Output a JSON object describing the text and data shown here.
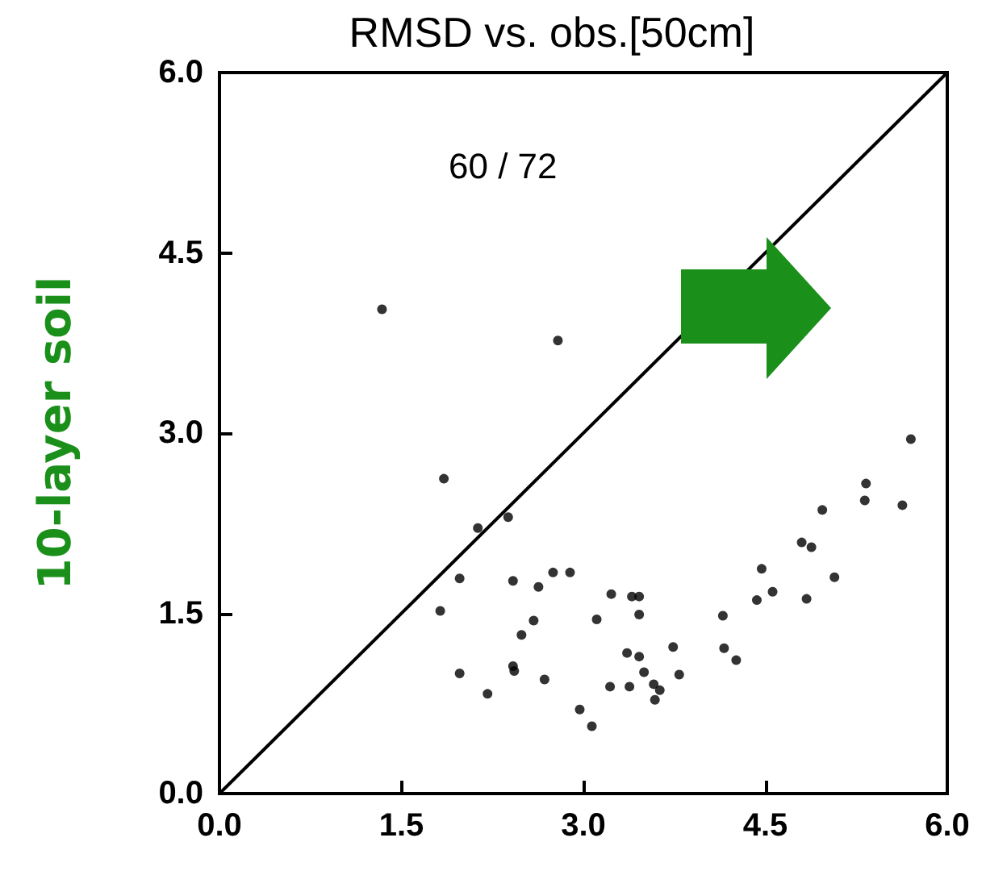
{
  "chart_data": {
    "type": "scatter",
    "title": "RMSD vs. obs.[50cm]",
    "ylabel": "10-layer soil",
    "annotations": [
      "60 / 72"
    ],
    "xlim": [
      0,
      6
    ],
    "ylim": [
      0,
      6
    ],
    "xticks": [
      {
        "value": 0,
        "label": "0.0"
      },
      {
        "value": 1.5,
        "label": "1.5"
      },
      {
        "value": 3,
        "label": "3.0"
      },
      {
        "value": 4.5,
        "label": "4.5"
      },
      {
        "value": 6,
        "label": "6.0"
      }
    ],
    "yticks": [
      {
        "value": 0,
        "label": "0.0"
      },
      {
        "value": 1.5,
        "label": "1.5"
      },
      {
        "value": 3,
        "label": "3.0"
      },
      {
        "value": 4.5,
        "label": "4.5"
      },
      {
        "value": 6,
        "label": "6.0"
      }
    ],
    "grid": false,
    "marker": "circle",
    "series": [
      {
        "type": "line",
        "color": "#000000",
        "line_style": "solid",
        "marker": "none",
        "x": [
          0,
          6
        ],
        "values": [
          0,
          6
        ]
      },
      {
        "color": "#000000",
        "x": [
          1.34,
          2.79,
          1.85,
          2.13,
          2.38,
          1.82,
          1.98,
          2.42,
          2.63,
          2.75,
          2.89,
          2.59,
          2.49,
          1.98,
          2.42,
          2.21,
          2.68,
          2.97,
          3.07,
          3.11,
          5.7,
          5.33,
          5.32,
          5.63,
          4.97,
          4.8,
          4.88,
          4.47,
          5.07,
          4.56,
          4.84,
          4.43,
          4.15,
          4.16,
          4.26,
          3.23,
          3.4,
          3.46,
          3.46,
          3.74,
          3.36,
          3.46,
          3.5,
          3.79,
          3.22,
          3.38,
          3.58,
          3.63,
          3.59,
          2.43
        ],
        "values": [
          4.03,
          3.77,
          2.62,
          2.21,
          2.3,
          1.52,
          1.79,
          1.77,
          1.72,
          1.84,
          1.84,
          1.44,
          1.32,
          1.0,
          1.06,
          0.83,
          0.95,
          0.7,
          0.56,
          1.45,
          2.95,
          2.58,
          2.44,
          2.4,
          2.36,
          2.09,
          2.05,
          1.87,
          1.8,
          1.68,
          1.62,
          1.61,
          1.48,
          1.21,
          1.11,
          1.66,
          1.64,
          1.64,
          1.49,
          1.22,
          1.17,
          1.14,
          1.01,
          0.99,
          0.89,
          0.89,
          0.91,
          0.86,
          0.78,
          1.02
        ]
      }
    ]
  }
}
